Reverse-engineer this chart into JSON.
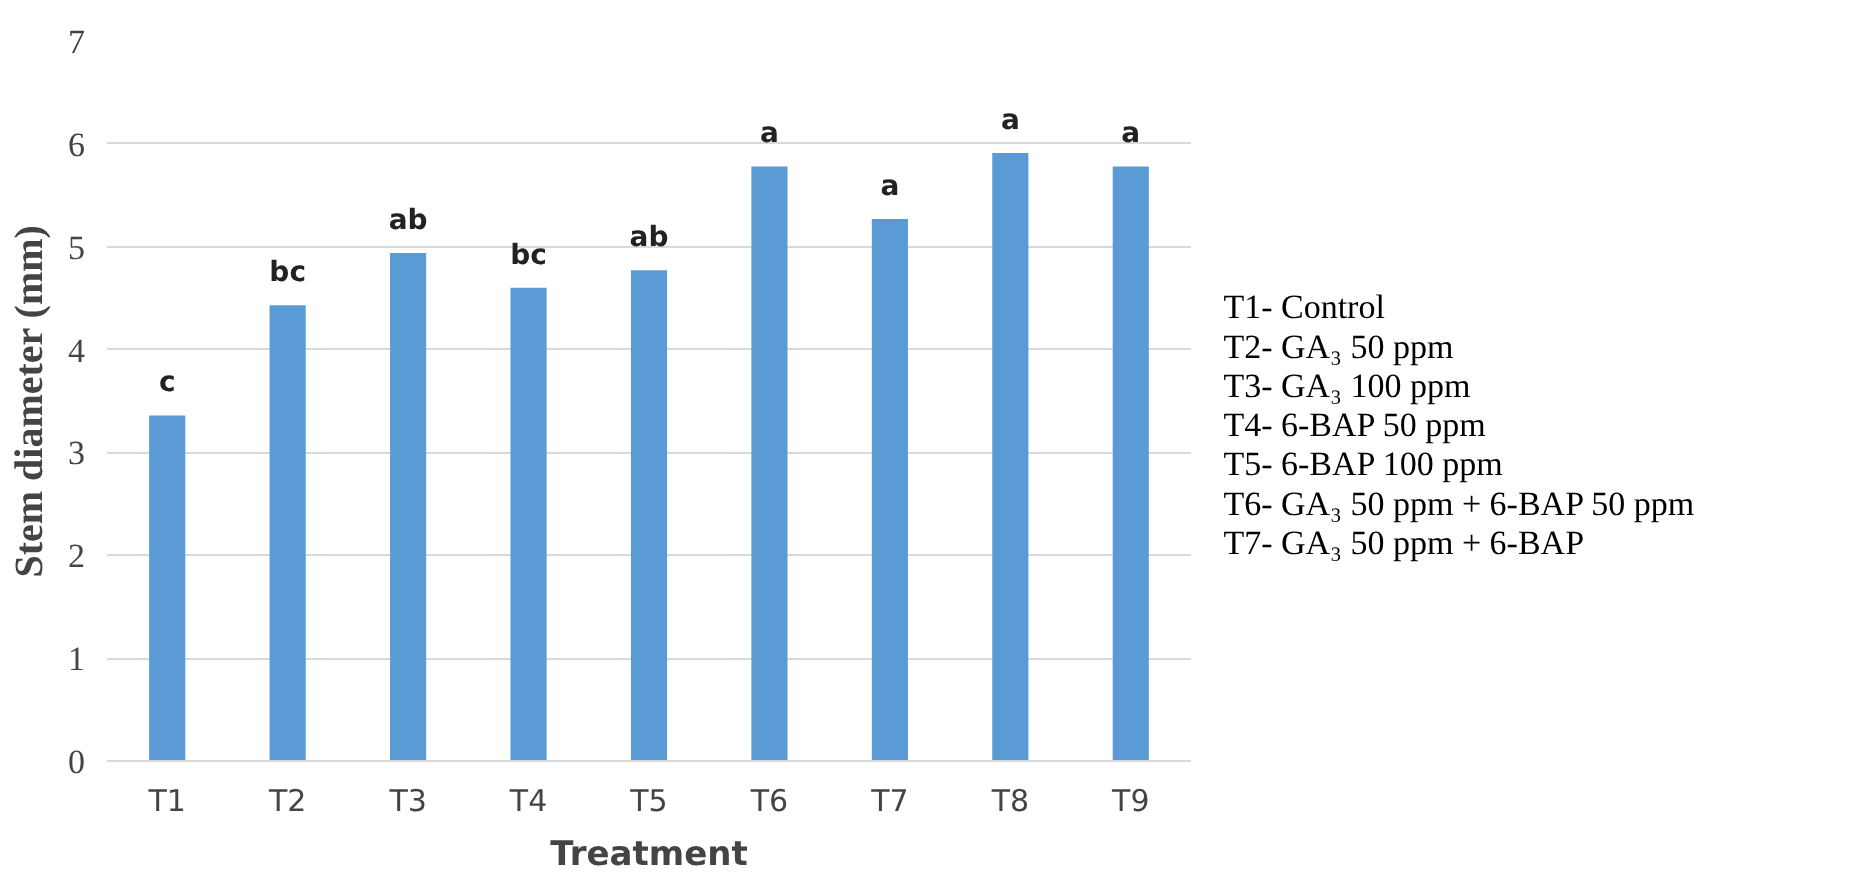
{
  "chart_data": {
    "type": "bar",
    "xlabel": "Treatment",
    "ylabel": "Stem diameter (mm)",
    "categories": [
      "T1",
      "T2",
      "T3",
      "T4",
      "T5",
      "T6",
      "T7",
      "T8",
      "T9"
    ],
    "values": [
      3.36,
      4.43,
      4.94,
      4.6,
      4.77,
      5.78,
      5.27,
      5.91,
      5.78
    ],
    "value_labels": [
      "c",
      "bc",
      "ab",
      "bc",
      "ab",
      "a",
      "a",
      "a",
      "a"
    ],
    "color": "#5b9bd5",
    "ylim": [
      0,
      7
    ],
    "yticks": [
      0,
      1,
      2,
      3,
      4,
      5,
      6,
      7
    ],
    "grid": "y",
    "annotations": [
      "T1- Control",
      "T2- GA₃ 50 ppm",
      "T3- GA₃ 100 ppm",
      "T4- 6-BAP 50 ppm",
      "T5- 6-BAP 100 ppm",
      "T6- GA₃ 50 ppm + 6-BAP 50 ppm",
      "T7- GA₃ 50 ppm + 6-BAP"
    ]
  }
}
